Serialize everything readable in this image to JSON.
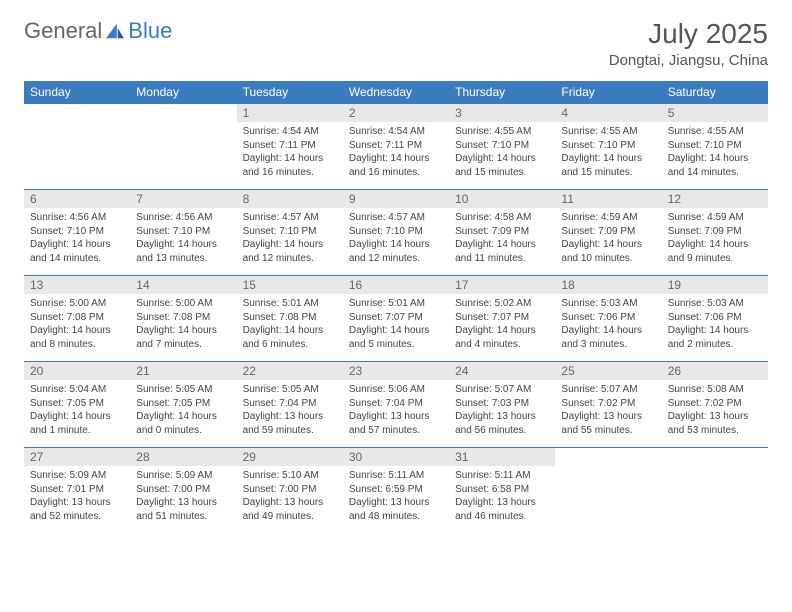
{
  "brand": {
    "part1": "General",
    "part2": "Blue",
    "logo_color": "#3b7bbf"
  },
  "title": "July 2025",
  "location": "Dongtai, Jiangsu, China",
  "colors": {
    "header_bg": "#3b7bbf",
    "header_text": "#ffffff",
    "daynum_bg": "#e8e8e8",
    "daynum_text": "#666666",
    "body_text": "#444444",
    "rule": "#3b7bbf",
    "page_bg": "#ffffff"
  },
  "typography": {
    "title_fontsize": 28,
    "location_fontsize": 15,
    "weekday_fontsize": 12,
    "daynum_fontsize": 12,
    "body_fontsize": 10
  },
  "weekdays": [
    "Sunday",
    "Monday",
    "Tuesday",
    "Wednesday",
    "Thursday",
    "Friday",
    "Saturday"
  ],
  "first_weekday_index": 2,
  "days": [
    {
      "n": "1",
      "sunrise": "Sunrise: 4:54 AM",
      "sunset": "Sunset: 7:11 PM",
      "daylight": "Daylight: 14 hours and 16 minutes."
    },
    {
      "n": "2",
      "sunrise": "Sunrise: 4:54 AM",
      "sunset": "Sunset: 7:11 PM",
      "daylight": "Daylight: 14 hours and 16 minutes."
    },
    {
      "n": "3",
      "sunrise": "Sunrise: 4:55 AM",
      "sunset": "Sunset: 7:10 PM",
      "daylight": "Daylight: 14 hours and 15 minutes."
    },
    {
      "n": "4",
      "sunrise": "Sunrise: 4:55 AM",
      "sunset": "Sunset: 7:10 PM",
      "daylight": "Daylight: 14 hours and 15 minutes."
    },
    {
      "n": "5",
      "sunrise": "Sunrise: 4:55 AM",
      "sunset": "Sunset: 7:10 PM",
      "daylight": "Daylight: 14 hours and 14 minutes."
    },
    {
      "n": "6",
      "sunrise": "Sunrise: 4:56 AM",
      "sunset": "Sunset: 7:10 PM",
      "daylight": "Daylight: 14 hours and 14 minutes."
    },
    {
      "n": "7",
      "sunrise": "Sunrise: 4:56 AM",
      "sunset": "Sunset: 7:10 PM",
      "daylight": "Daylight: 14 hours and 13 minutes."
    },
    {
      "n": "8",
      "sunrise": "Sunrise: 4:57 AM",
      "sunset": "Sunset: 7:10 PM",
      "daylight": "Daylight: 14 hours and 12 minutes."
    },
    {
      "n": "9",
      "sunrise": "Sunrise: 4:57 AM",
      "sunset": "Sunset: 7:10 PM",
      "daylight": "Daylight: 14 hours and 12 minutes."
    },
    {
      "n": "10",
      "sunrise": "Sunrise: 4:58 AM",
      "sunset": "Sunset: 7:09 PM",
      "daylight": "Daylight: 14 hours and 11 minutes."
    },
    {
      "n": "11",
      "sunrise": "Sunrise: 4:59 AM",
      "sunset": "Sunset: 7:09 PM",
      "daylight": "Daylight: 14 hours and 10 minutes."
    },
    {
      "n": "12",
      "sunrise": "Sunrise: 4:59 AM",
      "sunset": "Sunset: 7:09 PM",
      "daylight": "Daylight: 14 hours and 9 minutes."
    },
    {
      "n": "13",
      "sunrise": "Sunrise: 5:00 AM",
      "sunset": "Sunset: 7:08 PM",
      "daylight": "Daylight: 14 hours and 8 minutes."
    },
    {
      "n": "14",
      "sunrise": "Sunrise: 5:00 AM",
      "sunset": "Sunset: 7:08 PM",
      "daylight": "Daylight: 14 hours and 7 minutes."
    },
    {
      "n": "15",
      "sunrise": "Sunrise: 5:01 AM",
      "sunset": "Sunset: 7:08 PM",
      "daylight": "Daylight: 14 hours and 6 minutes."
    },
    {
      "n": "16",
      "sunrise": "Sunrise: 5:01 AM",
      "sunset": "Sunset: 7:07 PM",
      "daylight": "Daylight: 14 hours and 5 minutes."
    },
    {
      "n": "17",
      "sunrise": "Sunrise: 5:02 AM",
      "sunset": "Sunset: 7:07 PM",
      "daylight": "Daylight: 14 hours and 4 minutes."
    },
    {
      "n": "18",
      "sunrise": "Sunrise: 5:03 AM",
      "sunset": "Sunset: 7:06 PM",
      "daylight": "Daylight: 14 hours and 3 minutes."
    },
    {
      "n": "19",
      "sunrise": "Sunrise: 5:03 AM",
      "sunset": "Sunset: 7:06 PM",
      "daylight": "Daylight: 14 hours and 2 minutes."
    },
    {
      "n": "20",
      "sunrise": "Sunrise: 5:04 AM",
      "sunset": "Sunset: 7:05 PM",
      "daylight": "Daylight: 14 hours and 1 minute."
    },
    {
      "n": "21",
      "sunrise": "Sunrise: 5:05 AM",
      "sunset": "Sunset: 7:05 PM",
      "daylight": "Daylight: 14 hours and 0 minutes."
    },
    {
      "n": "22",
      "sunrise": "Sunrise: 5:05 AM",
      "sunset": "Sunset: 7:04 PM",
      "daylight": "Daylight: 13 hours and 59 minutes."
    },
    {
      "n": "23",
      "sunrise": "Sunrise: 5:06 AM",
      "sunset": "Sunset: 7:04 PM",
      "daylight": "Daylight: 13 hours and 57 minutes."
    },
    {
      "n": "24",
      "sunrise": "Sunrise: 5:07 AM",
      "sunset": "Sunset: 7:03 PM",
      "daylight": "Daylight: 13 hours and 56 minutes."
    },
    {
      "n": "25",
      "sunrise": "Sunrise: 5:07 AM",
      "sunset": "Sunset: 7:02 PM",
      "daylight": "Daylight: 13 hours and 55 minutes."
    },
    {
      "n": "26",
      "sunrise": "Sunrise: 5:08 AM",
      "sunset": "Sunset: 7:02 PM",
      "daylight": "Daylight: 13 hours and 53 minutes."
    },
    {
      "n": "27",
      "sunrise": "Sunrise: 5:09 AM",
      "sunset": "Sunset: 7:01 PM",
      "daylight": "Daylight: 13 hours and 52 minutes."
    },
    {
      "n": "28",
      "sunrise": "Sunrise: 5:09 AM",
      "sunset": "Sunset: 7:00 PM",
      "daylight": "Daylight: 13 hours and 51 minutes."
    },
    {
      "n": "29",
      "sunrise": "Sunrise: 5:10 AM",
      "sunset": "Sunset: 7:00 PM",
      "daylight": "Daylight: 13 hours and 49 minutes."
    },
    {
      "n": "30",
      "sunrise": "Sunrise: 5:11 AM",
      "sunset": "Sunset: 6:59 PM",
      "daylight": "Daylight: 13 hours and 48 minutes."
    },
    {
      "n": "31",
      "sunrise": "Sunrise: 5:11 AM",
      "sunset": "Sunset: 6:58 PM",
      "daylight": "Daylight: 13 hours and 46 minutes."
    }
  ]
}
